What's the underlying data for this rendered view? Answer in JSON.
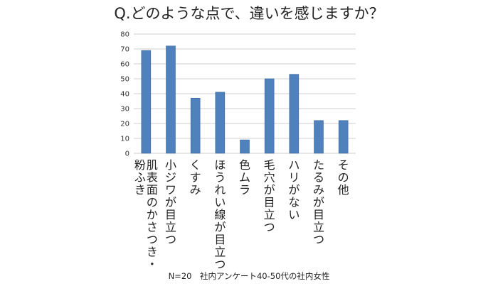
{
  "chart_data": {
    "type": "bar",
    "title": "Q.どのような点で、違いを感じますか？",
    "categories": [
      [
        "肌表面のかさつき・",
        "粉ふき"
      ],
      [
        "小ジワが目立つ"
      ],
      [
        "くすみ"
      ],
      [
        "ほうれい線が目立つ"
      ],
      [
        "色ムラ"
      ],
      [
        "毛穴が目立つ"
      ],
      [
        "ハリがない"
      ],
      [
        "たるみが目立つ"
      ],
      [
        "その他"
      ]
    ],
    "values": [
      69,
      72,
      37,
      41,
      9,
      50,
      53,
      22,
      22
    ],
    "ylim": [
      0,
      80
    ],
    "yticks": [
      0,
      10,
      20,
      30,
      40,
      50,
      60,
      70,
      80
    ],
    "xlabel": "",
    "ylabel": "",
    "grid": true,
    "bar_color": "#4F81BD",
    "bar_edge_color": "#3A6699",
    "grid_color": "#BFBFBF",
    "footnote": "N=20　社内アンケート40-50代の社内女性"
  }
}
